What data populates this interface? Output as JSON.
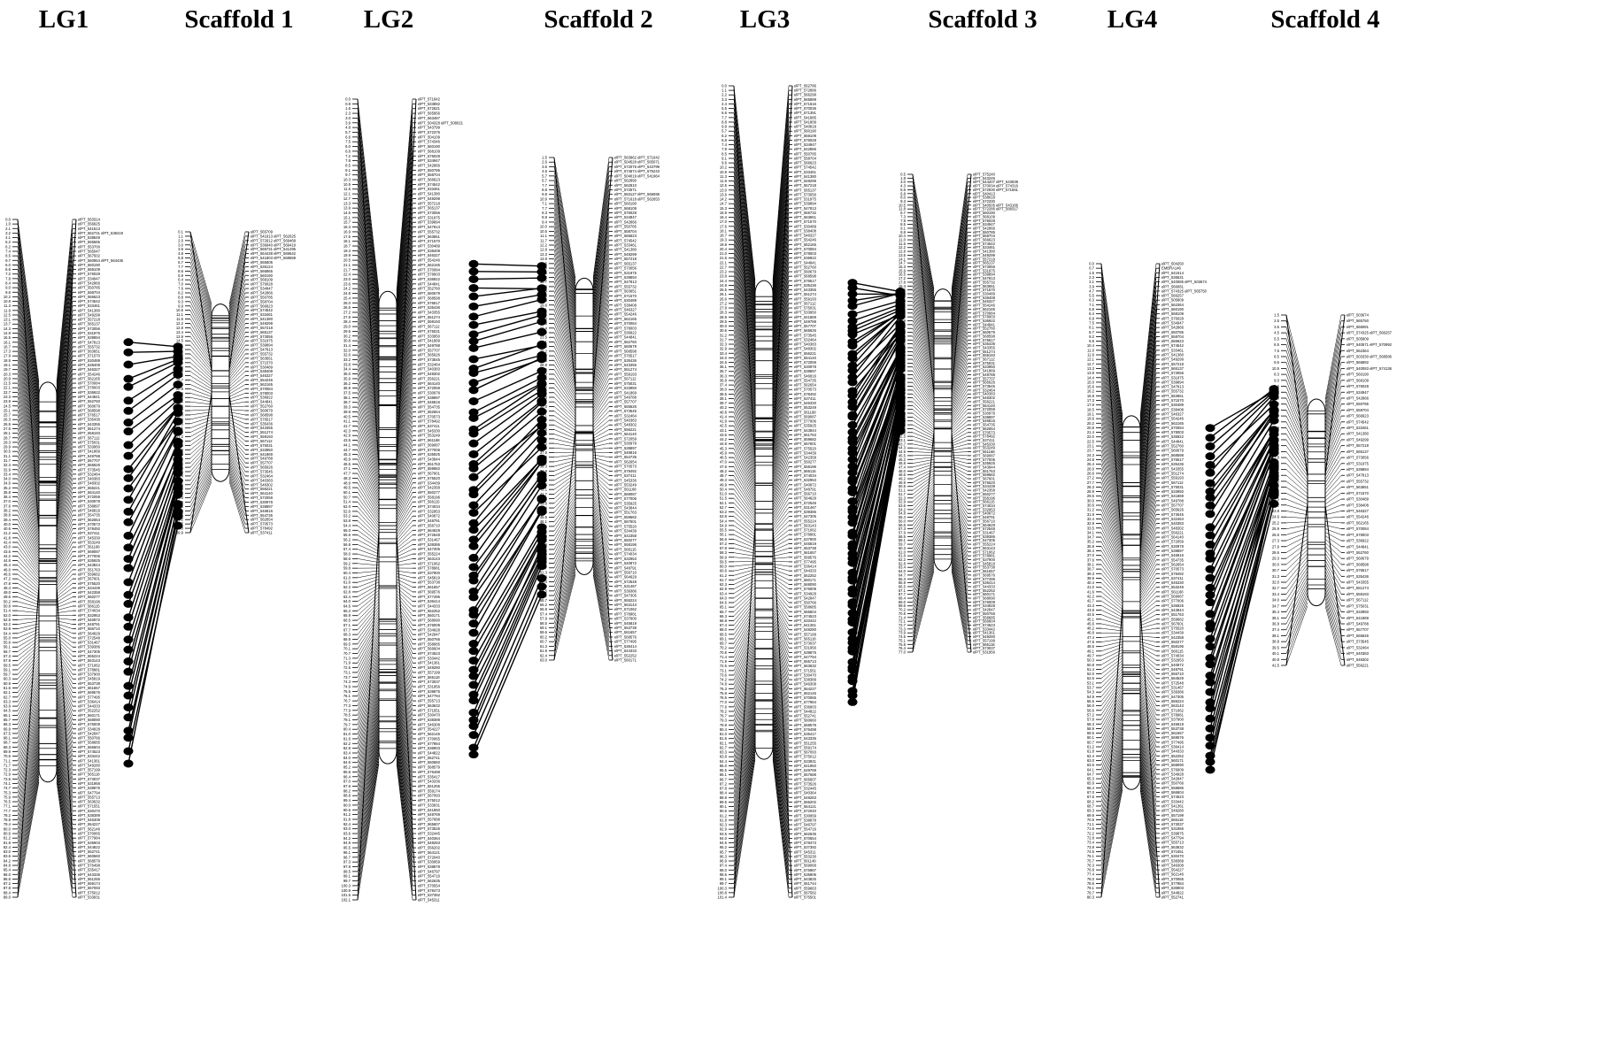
{
  "titles": {
    "lg1": "LG1",
    "scaffold1": "Scaffold 1",
    "lg2": "LG2",
    "scaffold2": "Scaffold 2",
    "lg3": "LG3",
    "scaffold3": "Scaffold 3",
    "lg4": "LG4",
    "scaffold4": "Scaffold 4"
  },
  "maps": [
    {
      "lg": {
        "name": "LG1",
        "min_cm": 0.0,
        "max_cm": 89.0,
        "sample_positions": [
          "0.0",
          "1.0",
          "2.1",
          "3.2",
          "4.1",
          "5.2",
          "6.2",
          "7.4",
          "8.5",
          "9.7"
        ],
        "sample_markers": [
          "elPT_563314",
          "elPT_556625",
          "elPT_541613",
          "elPT_562731 elPT_538419",
          "elPT_538649",
          "elPT_565565",
          "elPT_553700",
          "elPT_565047",
          "elPT_567502",
          "elPT_560954 elPT_564436"
        ]
      },
      "scaffold": {
        "name": "Scaffold 1",
        "min_cm": 0.1,
        "max_cm": 39.9,
        "sample_positions": [
          "0.1",
          "1.1",
          "2.0",
          "3.0",
          "3.9",
          "4.8",
          "5.8",
          "6.7",
          "7.7",
          "8.6"
        ],
        "sample_markers": [
          "elPT_565709",
          "elPT_541613 elPT_562625",
          "elPT_572612 elPT_569468",
          "elPT_536940 elPT_569419",
          "elPT_565731 elPT_541295",
          "elPT_564438 elPT_569642",
          "elPT_541803 elPT_568559",
          "elPT_565605",
          "elPT_535124",
          "elPT_566865"
        ]
      },
      "links": 38
    },
    {
      "lg": {
        "name": "LG2",
        "min_cm": 0.0,
        "max_cm": 102.1,
        "sample_positions": [
          "0.0",
          "0.9",
          "1.6",
          "2.3",
          "3.0",
          "3.9",
          "4.8",
          "5.7",
          "6.6",
          "7.5"
        ],
        "sample_markers": [
          "elPT_571642",
          "elPT_533892",
          "elPT_572621",
          "elPT_565956",
          "elPT_563487",
          "elPT_504328 elPT_508021",
          "elPT_543799",
          "elPT_572376",
          "elPT_504109",
          "elPT_574346"
        ]
      },
      "scaffold": {
        "name": "Scaffold 2",
        "min_cm": 1.5,
        "max_cm": 63.0,
        "sample_positions": [
          "1.5",
          "2.6",
          "3.6",
          "4.6",
          "5.7",
          "6.7",
          "7.7",
          "8.8",
          "9.8",
          "10.9"
        ],
        "sample_markers": [
          "elPT_563962 elPT_571642",
          "elPT_504528 elPT_565071",
          "elPT_572076 elPT_543799",
          "elPT_574674 elPT_575243",
          "elPT_504019 elPT_541964",
          "elPT_562890",
          "elPT_562810",
          "elPT_572571",
          "elPT_563127 elPT_566596",
          "elPT_571618 elPT_562653"
        ]
      },
      "links": 58
    },
    {
      "lg": {
        "name": "LG3",
        "min_cm": 0.0,
        "max_cm": 101.4,
        "sample_positions": [
          "0.0",
          "1.1",
          "2.2",
          "3.3",
          "4.4",
          "5.5",
          "6.6",
          "7.7",
          "8.8",
          "9.9"
        ],
        "sample_markers": [
          "elPT_562786",
          "elPT_572886",
          "elPT_566299",
          "elPT_565899",
          "elPT_571616",
          "elPT_570036",
          "elPT_571391",
          "elPT_541885",
          "elPT_541809",
          "elPT_540818"
        ]
      },
      "scaffold": {
        "name": "Scaffold 3",
        "min_cm": 0.5,
        "max_cm": 77.0,
        "sample_positions": [
          "0.5",
          "1.8",
          "3.0",
          "4.3",
          "5.5",
          "6.8",
          "8.0",
          "9.3",
          "10.5",
          "11.8"
        ],
        "sample_markers": [
          "elPT_575240",
          "elPT_543245",
          "elPT_544207 elPT_543938",
          "elPT_570034 elPT_574316",
          "elPT_572930 elPT_571561",
          "elPT_540413",
          "elPT_538018",
          "elPT_572330",
          "elPT_540505 elPT_543166",
          "elPT_572286 elPT_568317"
        ]
      },
      "links": 72
    },
    {
      "lg": {
        "name": "LG4",
        "min_cm": 0.0,
        "max_cm": 80.3,
        "sample_positions": [
          "0.0",
          "0.7",
          "1.5",
          "2.3",
          "3.1",
          "3.9",
          "4.7",
          "5.5",
          "6.3",
          "7.1"
        ],
        "sample_markers": [
          "elPT_504250",
          "EMBRA146",
          "elPT_541614",
          "elPT_536631",
          "elPT_540085 elPT_503674",
          "elPT_566081",
          "elPT_574325 elPT_565750",
          "elPT_566257",
          "elPT_505809",
          "elPT_562364"
        ]
      },
      "scaffold": {
        "name": "Scaffold 4",
        "min_cm": 1.5,
        "max_cm": 41.5,
        "sample_positions": [
          "1.5",
          "2.5",
          "3.5",
          "4.5",
          "5.5",
          "6.5",
          "7.5",
          "8.5",
          "9.5",
          "10.5"
        ],
        "sample_markers": [
          "elPT_503674",
          "elPT_565750",
          "elPT_566081",
          "elPT_574325 elPT_566257",
          "elPT_505809",
          "elPT_540571 elPT_570992",
          "elPT_562364",
          "elPT_503330 elPT_568586",
          "elPT_566892",
          "elPT_540083 elPT_574136"
        ]
      },
      "links": 40
    }
  ]
}
